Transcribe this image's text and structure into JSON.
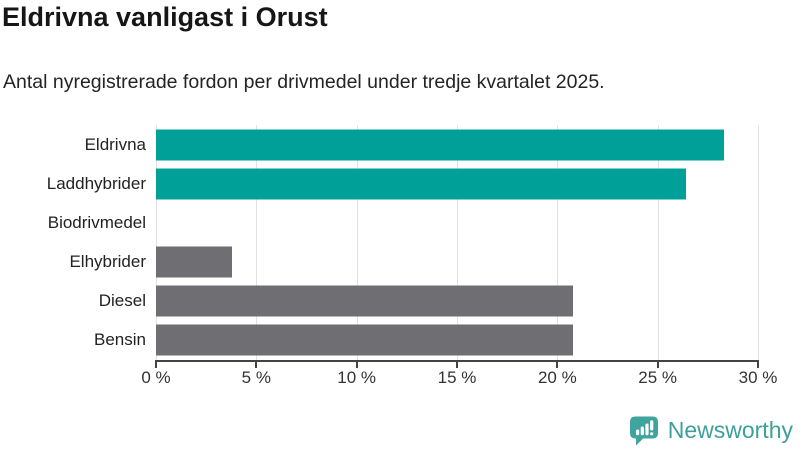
{
  "header": {
    "title": "Eldrivna vanligast i Orust",
    "subtitle": "Antal nyregistrerade fordon per drivmedel under tredje kvartalet 2025."
  },
  "chart_data": {
    "type": "bar",
    "orientation": "horizontal",
    "title": "Eldrivna vanligast i Orust",
    "subtitle": "Antal nyregistrerade fordon per drivmedel under tredje kvartalet 2025.",
    "categories": [
      "Eldrivna",
      "Laddhybrider",
      "Biodrivmedel",
      "Elhybrider",
      "Diesel",
      "Bensin"
    ],
    "values": [
      28.3,
      26.4,
      0,
      3.8,
      20.8,
      20.8
    ],
    "unit": "%",
    "xlabel": "",
    "ylabel": "",
    "xlim": [
      0,
      30
    ],
    "x_ticks": [
      {
        "value": 0,
        "label": "0 %"
      },
      {
        "value": 5,
        "label": "5 %"
      },
      {
        "value": 10,
        "label": "10 %"
      },
      {
        "value": 15,
        "label": "15 %"
      },
      {
        "value": 20,
        "label": "20 %"
      },
      {
        "value": 25,
        "label": "25 %"
      },
      {
        "value": 30,
        "label": "30 %"
      }
    ],
    "grid": true,
    "legend": "none",
    "bar_colors": [
      "#00a099",
      "#00a099",
      "#6e6e73",
      "#6e6e73",
      "#6e6e73",
      "#6e6e73"
    ],
    "colors": {
      "highlight": "#00a099",
      "default": "#6e6e73",
      "gridline": "#e2e2e2",
      "axis": "#434343"
    }
  },
  "footer": {
    "brand": "Newsworthy",
    "logo_icon": "newsworthy-speech-bubble-chart-icon",
    "brand_color": "#3da09a"
  }
}
